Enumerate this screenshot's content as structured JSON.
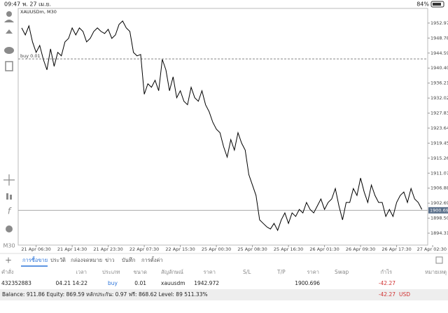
{
  "status_bar": {
    "time": "09:47",
    "date": "พ. 27 เม.ย.",
    "battery": "84%"
  },
  "timeframe": "M30",
  "chart_data": {
    "type": "line",
    "title": "XAUUSDm, M30",
    "color": "#000000",
    "categories": [
      null,
      null,
      null,
      null,
      "21 Apr 06:30",
      null,
      null,
      null,
      null,
      null,
      null,
      null,
      null,
      null,
      "21 Apr 14:30",
      null,
      null,
      null,
      null,
      null,
      null,
      null,
      null,
      null,
      "21 Apr 23:30",
      null,
      null,
      null,
      null,
      null,
      null,
      null,
      null,
      null,
      "22 Apr 07:30",
      null,
      null,
      null,
      null,
      null,
      null,
      null,
      null,
      null,
      "22 Apr 15:30",
      null,
      null,
      null,
      null,
      null,
      null,
      null,
      null,
      null,
      "25 Apr 00:30",
      null,
      null,
      null,
      null,
      null,
      null,
      null,
      null,
      null,
      "25 Apr 08:30",
      null,
      null,
      null,
      null,
      null,
      null,
      null,
      null,
      null,
      "25 Apr 16:30",
      null,
      null,
      null,
      null,
      null,
      null,
      null,
      null,
      null,
      "26 Apr 01:30",
      null,
      null,
      null,
      null,
      null,
      null,
      null,
      null,
      null,
      "26 Apr 09:30",
      null,
      null,
      null,
      null,
      null,
      null,
      null,
      null,
      null,
      "26 Apr 17:30",
      null,
      null,
      null,
      null,
      null,
      null,
      null,
      null,
      null,
      "27 Apr 02:30"
    ],
    "values": [
      1951.61,
      1949.66,
      1952.19,
      1947.71,
      1944.78,
      1946.73,
      1942.84,
      1939.91,
      1945.76,
      1940.89,
      1944.78,
      1943.81,
      1947.71,
      1948.68,
      1951.61,
      1949.66,
      1951.61,
      1950.63,
      1947.71,
      1948.68,
      1950.63,
      1951.61,
      1950.63,
      1950.05,
      1951.22,
      1948.68,
      1949.66,
      1952.58,
      1953.55,
      1951.61,
      1950.63,
      1944.78,
      1943.81,
      1944.2,
      1933.09,
      1936.02,
      1935.04,
      1936.99,
      1934.07,
      1942.84,
      1939.91,
      1934.07,
      1937.96,
      1932.12,
      1934.07,
      1931.14,
      1930.17,
      1935.04,
      1932.12,
      1931.14,
      1934.07,
      1930.17,
      1928.22,
      1925.3,
      1923.35,
      1922.37,
      1918.48,
      1915.55,
      1920.43,
      1917.5,
      1922.37,
      1919.45,
      1917.5,
      1910.68,
      1907.76,
      1904.84,
      1898.02,
      1897.04,
      1896.07,
      1895.48,
      1897.04,
      1895.1,
      1898.02,
      1899.97,
      1897.04,
      1899.97,
      1898.99,
      1900.94,
      1899.97,
      1902.89,
      1900.94,
      1899.97,
      1901.91,
      1903.86,
      1900.94,
      1902.89,
      1903.86,
      1906.78,
      1901.91,
      1898.02,
      1902.89,
      1902.89,
      1906.78,
      1904.84,
      1909.71,
      1905.81,
      1902.89,
      1907.76,
      1904.84,
      1902.89,
      1902.89,
      1898.99,
      1900.94,
      1898.99,
      1902.89,
      1904.84,
      1905.81,
      1902.89,
      1906.78,
      1903.86,
      1902.89,
      1900.94,
      null,
      null,
      null
    ],
    "ylim": [
      1890.99,
      1957.06
    ],
    "yticks": [
      {
        "value": 1952.97,
        "label": "1952.970"
      },
      {
        "value": 1948.78,
        "label": "1948.780"
      },
      {
        "value": 1944.59,
        "label": "1944.590"
      },
      {
        "value": 1940.4,
        "label": "1940.400"
      },
      {
        "value": 1936.21,
        "label": "1936.210"
      },
      {
        "value": 1932.02,
        "label": "1932.020"
      },
      {
        "value": 1927.83,
        "label": "1927.830"
      },
      {
        "value": 1923.64,
        "label": "1923.640"
      },
      {
        "value": 1919.45,
        "label": "1919.450"
      },
      {
        "value": 1915.26,
        "label": "1915.260"
      },
      {
        "value": 1911.07,
        "label": "1911.070"
      },
      {
        "value": 1906.88,
        "label": "1906.880"
      },
      {
        "value": 1902.69,
        "label": "1902.690"
      },
      {
        "value": 1898.5,
        "label": "1898.500"
      },
      {
        "value": 1894.31,
        "label": "1894.310"
      }
    ],
    "buy_line": {
      "label": "buy 0.01",
      "value": 1942.972
    },
    "current_price": 1900.696
  },
  "tabs": [
    "การซื้อขาย",
    "ประวัติ",
    "กล่องจดหมาย",
    "ข่าว",
    "บันทึก",
    "การตั้งค่า"
  ],
  "table": {
    "headers": [
      "คำสั่ง",
      "เวลา",
      "ประเภท",
      "ขนาด",
      "สัญลักษณ์",
      "ราคา",
      "S/L",
      "T/P",
      "ราคา",
      "Swap",
      "กำไร",
      "หมายเหตุ"
    ],
    "row": {
      "order": "432352883",
      "time": "04.21 14:22",
      "type": "buy",
      "size": "0.01",
      "symbol": "xauusdm",
      "open_price": "1942.972",
      "price": "1900.696",
      "profit": "-42.27"
    }
  },
  "summary": {
    "text": "Balance: 911.86 Equity: 869.59 หลักประกัน: 0.97 ฟรี: 868.62 Level: 89 511.33%",
    "profit": "-42.27",
    "currency": "USD"
  }
}
